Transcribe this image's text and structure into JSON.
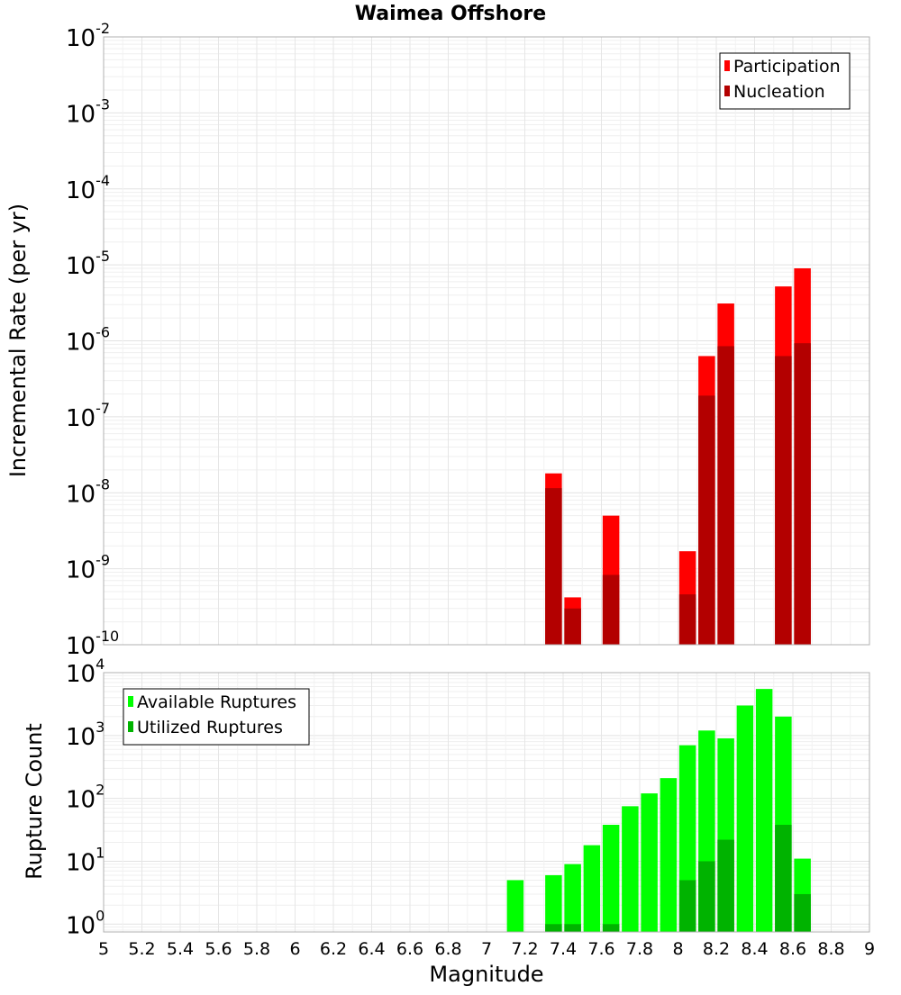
{
  "chart_data": [
    {
      "type": "bar",
      "title": "Waimea Offshore",
      "xlabel": "",
      "ylabel": "Incremental Rate (per yr)",
      "y_scale": "log",
      "ylim": [
        1e-10,
        0.01
      ],
      "xlim": [
        5,
        9
      ],
      "grid": true,
      "legend_placement": "top-right",
      "y_ticks": [
        {
          "base": "10",
          "exp": "-10",
          "value": 1e-10
        },
        {
          "base": "10",
          "exp": "-9",
          "value": 1e-09
        },
        {
          "base": "10",
          "exp": "-8",
          "value": 1e-08
        },
        {
          "base": "10",
          "exp": "-7",
          "value": 1e-07
        },
        {
          "base": "10",
          "exp": "-6",
          "value": 1e-06
        },
        {
          "base": "10",
          "exp": "-5",
          "value": 1e-05
        },
        {
          "base": "10",
          "exp": "-4",
          "value": 0.0001
        },
        {
          "base": "10",
          "exp": "-3",
          "value": 0.001
        },
        {
          "base": "10",
          "exp": "-2",
          "value": 0.01
        }
      ],
      "series": [
        {
          "name": "Participation",
          "color": "#ff0000",
          "points": [
            {
              "x": 7.35,
              "y": 1.8e-08
            },
            {
              "x": 7.45,
              "y": 4.2e-10
            },
            {
              "x": 7.65,
              "y": 5e-09
            },
            {
              "x": 8.05,
              "y": 1.7e-09
            },
            {
              "x": 8.15,
              "y": 6.3e-07
            },
            {
              "x": 8.25,
              "y": 3.1e-06
            },
            {
              "x": 8.55,
              "y": 5.2e-06
            },
            {
              "x": 8.65,
              "y": 9e-06
            }
          ]
        },
        {
          "name": "Nucleation",
          "color": "#b30000",
          "points": [
            {
              "x": 7.35,
              "y": 1.15e-08
            },
            {
              "x": 7.45,
              "y": 3e-10
            },
            {
              "x": 7.65,
              "y": 8.3e-10
            },
            {
              "x": 8.05,
              "y": 4.6e-10
            },
            {
              "x": 8.15,
              "y": 1.9e-07
            },
            {
              "x": 8.25,
              "y": 8.5e-07
            },
            {
              "x": 8.55,
              "y": 6.3e-07
            },
            {
              "x": 8.65,
              "y": 9.3e-07
            }
          ]
        }
      ]
    },
    {
      "type": "bar",
      "title": "",
      "xlabel": "Magnitude",
      "ylabel": "Rupture Count",
      "y_scale": "log",
      "ylim": [
        0.75,
        10000
      ],
      "xlim": [
        5,
        9
      ],
      "grid": true,
      "legend_placement": "top-left",
      "x_ticks": [
        "5",
        "5.2",
        "5.4",
        "5.6",
        "5.8",
        "6",
        "6.2",
        "6.4",
        "6.6",
        "6.8",
        "7",
        "7.2",
        "7.4",
        "7.6",
        "7.8",
        "8",
        "8.2",
        "8.4",
        "8.6",
        "8.8",
        "9"
      ],
      "y_ticks": [
        {
          "base": "10",
          "exp": "0",
          "value": 1
        },
        {
          "base": "10",
          "exp": "1",
          "value": 10
        },
        {
          "base": "10",
          "exp": "2",
          "value": 100
        },
        {
          "base": "10",
          "exp": "3",
          "value": 1000
        },
        {
          "base": "10",
          "exp": "4",
          "value": 10000
        }
      ],
      "series": [
        {
          "name": "Available Ruptures",
          "color": "#00ff00",
          "points": [
            {
              "x": 7.15,
              "y": 5
            },
            {
              "x": 7.35,
              "y": 6
            },
            {
              "x": 7.45,
              "y": 9
            },
            {
              "x": 7.55,
              "y": 18
            },
            {
              "x": 7.65,
              "y": 38
            },
            {
              "x": 7.75,
              "y": 75
            },
            {
              "x": 7.85,
              "y": 120
            },
            {
              "x": 7.95,
              "y": 210
            },
            {
              "x": 8.05,
              "y": 700
            },
            {
              "x": 8.15,
              "y": 1200
            },
            {
              "x": 8.25,
              "y": 900
            },
            {
              "x": 8.35,
              "y": 3000
            },
            {
              "x": 8.45,
              "y": 5500
            },
            {
              "x": 8.55,
              "y": 2000
            },
            {
              "x": 8.65,
              "y": 11
            }
          ]
        },
        {
          "name": "Utilized Ruptures",
          "color": "#00b300",
          "points": [
            {
              "x": 7.35,
              "y": 1
            },
            {
              "x": 7.45,
              "y": 1
            },
            {
              "x": 7.65,
              "y": 1
            },
            {
              "x": 8.05,
              "y": 5
            },
            {
              "x": 8.15,
              "y": 10
            },
            {
              "x": 8.25,
              "y": 22
            },
            {
              "x": 8.55,
              "y": 38
            },
            {
              "x": 8.65,
              "y": 3
            }
          ]
        }
      ]
    }
  ]
}
